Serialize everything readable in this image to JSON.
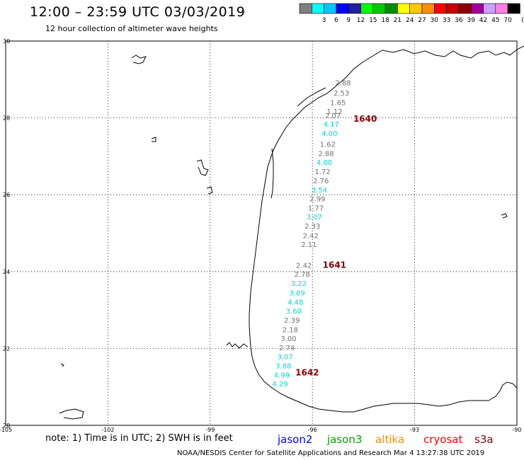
{
  "header": {
    "title": "12:00 – 23:59 UTC 03/03/2019",
    "subtitle": "12 hour collection of altimeter wave heights"
  },
  "colorbar": {
    "unit": "(ft)",
    "swatches": [
      {
        "color": "#7f7f7f",
        "label": ""
      },
      {
        "color": "#00ffff",
        "label": "3"
      },
      {
        "color": "#00c8ff",
        "label": "6"
      },
      {
        "color": "#0000ff",
        "label": "9"
      },
      {
        "color": "#2020a0",
        "label": "12"
      },
      {
        "color": "#00ff00",
        "label": "15"
      },
      {
        "color": "#00c800",
        "label": "18"
      },
      {
        "color": "#008c00",
        "label": "21"
      },
      {
        "color": "#ffff00",
        "label": "24"
      },
      {
        "color": "#ffc800",
        "label": "27"
      },
      {
        "color": "#ff8c00",
        "label": "30"
      },
      {
        "color": "#ff0000",
        "label": "33"
      },
      {
        "color": "#c80000",
        "label": "36"
      },
      {
        "color": "#8c0000",
        "label": "39"
      },
      {
        "color": "#a000a0",
        "label": "42"
      },
      {
        "color": "#c8a0ff",
        "label": "45"
      },
      {
        "color": "#ff80e0",
        "label": "70"
      },
      {
        "color": "#000000",
        "label": ""
      }
    ]
  },
  "map": {
    "lon_labels": [
      "-105",
      "-102",
      "-99",
      "-96",
      "-93",
      "-90"
    ],
    "lat_labels": [
      "30",
      "28",
      "26",
      "24",
      "22",
      "20"
    ],
    "colors": {
      "gray": "#707070",
      "cyan": "#00d8d8",
      "pass": "#8b0000"
    },
    "passes": [
      {
        "label": "1640",
        "lon": -94.8,
        "lat": 27.9
      },
      {
        "label": "1641",
        "lon": -95.7,
        "lat": 24.1
      },
      {
        "label": "1642",
        "lon": -96.5,
        "lat": 21.3
      }
    ],
    "observations": [
      {
        "value": "2.88",
        "color": "gray",
        "lon": -95.1,
        "lat": 28.85
      },
      {
        "value": "2.53",
        "color": "gray",
        "lon": -95.15,
        "lat": 28.58
      },
      {
        "value": "1.65",
        "color": "gray",
        "lon": -95.25,
        "lat": 28.33
      },
      {
        "value": "1.12",
        "color": "gray",
        "lon": -95.35,
        "lat": 28.1
      },
      {
        "value": "2.07",
        "color": "gray",
        "lon": -95.4,
        "lat": 27.99
      },
      {
        "value": "4.17",
        "color": "cyan",
        "lon": -95.45,
        "lat": 27.77
      },
      {
        "value": "4.00",
        "color": "cyan",
        "lon": -95.5,
        "lat": 27.53
      },
      {
        "value": "1.62",
        "color": "gray",
        "lon": -95.55,
        "lat": 27.25
      },
      {
        "value": "2.88",
        "color": "gray",
        "lon": -95.6,
        "lat": 27.01
      },
      {
        "value": "4.00",
        "color": "cyan",
        "lon": -95.65,
        "lat": 26.78
      },
      {
        "value": "1.72",
        "color": "gray",
        "lon": -95.7,
        "lat": 26.54
      },
      {
        "value": "2.76",
        "color": "gray",
        "lon": -95.75,
        "lat": 26.3
      },
      {
        "value": "3.54",
        "color": "cyan",
        "lon": -95.8,
        "lat": 26.06
      },
      {
        "value": "2.99",
        "color": "gray",
        "lon": -95.85,
        "lat": 25.83
      },
      {
        "value": "1.77",
        "color": "gray",
        "lon": -95.9,
        "lat": 25.59
      },
      {
        "value": "3.07",
        "color": "cyan",
        "lon": -95.95,
        "lat": 25.36
      },
      {
        "value": "2.33",
        "color": "gray",
        "lon": -96.0,
        "lat": 25.12
      },
      {
        "value": "2.42",
        "color": "gray",
        "lon": -96.05,
        "lat": 24.87
      },
      {
        "value": "2.11",
        "color": "gray",
        "lon": -96.1,
        "lat": 24.64
      },
      {
        "value": "2.42",
        "color": "gray",
        "lon": -96.25,
        "lat": 24.1
      },
      {
        "value": "2.78",
        "color": "gray",
        "lon": -96.3,
        "lat": 23.87
      },
      {
        "value": "3.22",
        "color": "cyan",
        "lon": -96.4,
        "lat": 23.63
      },
      {
        "value": "3.89",
        "color": "cyan",
        "lon": -96.45,
        "lat": 23.38
      },
      {
        "value": "4.48",
        "color": "cyan",
        "lon": -96.5,
        "lat": 23.14
      },
      {
        "value": "3.60",
        "color": "cyan",
        "lon": -96.55,
        "lat": 22.91
      },
      {
        "value": "2.39",
        "color": "gray",
        "lon": -96.6,
        "lat": 22.67
      },
      {
        "value": "2.18",
        "color": "gray",
        "lon": -96.65,
        "lat": 22.42
      },
      {
        "value": "3.00",
        "color": "gray",
        "lon": -96.7,
        "lat": 22.19
      },
      {
        "value": "2.74",
        "color": "gray",
        "lon": -96.75,
        "lat": 21.95
      },
      {
        "value": "3.07",
        "color": "cyan",
        "lon": -96.8,
        "lat": 21.72
      },
      {
        "value": "3.88",
        "color": "cyan",
        "lon": -96.85,
        "lat": 21.48
      },
      {
        "value": "4.99",
        "color": "cyan",
        "lon": -96.9,
        "lat": 21.24
      },
      {
        "value": "4.29",
        "color": "cyan",
        "lon": -96.95,
        "lat": 21.01
      }
    ]
  },
  "note": "note: 1) Time is in UTC; 2) SWH is in feet",
  "legend": [
    {
      "label": "jason2",
      "color": "#0000ff"
    },
    {
      "label": "jason3",
      "color": "#00a000"
    },
    {
      "label": "altika",
      "color": "#ff8c00"
    },
    {
      "label": "cryosat",
      "color": "#ff0000"
    },
    {
      "label": "s3a",
      "color": "#8b0000"
    }
  ],
  "footer": "NOAA/NESDIS Center for Satellite Applications and Research   Mar  4 13:27:38 UTC 2019"
}
